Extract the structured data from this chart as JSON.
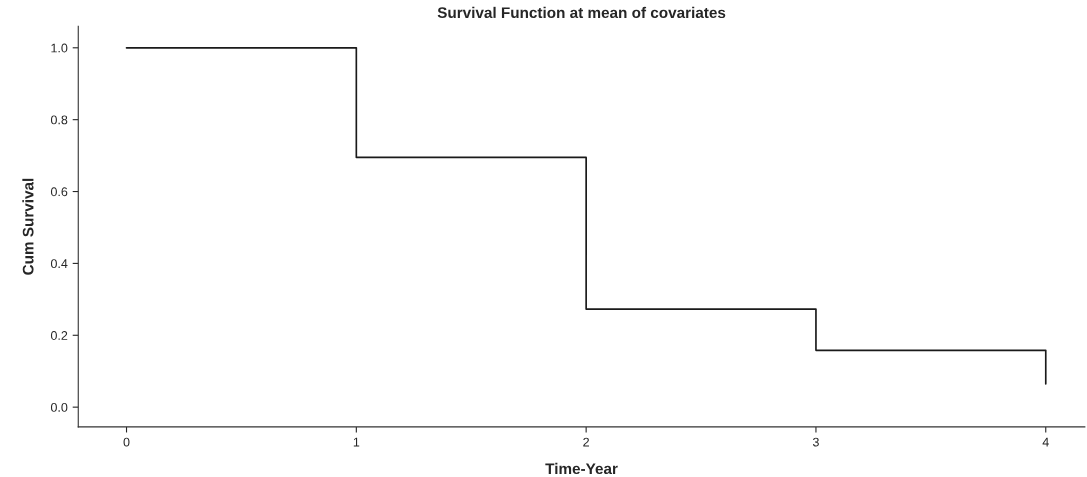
{
  "chart_data": {
    "type": "step",
    "title": "Survival Function at mean of covariates",
    "xlabel": "Time-Year",
    "ylabel": "Cum Survival",
    "x": [
      0,
      1,
      2,
      3,
      4
    ],
    "series": [
      {
        "color": "#1a1a1a",
        "values": [
          1.0,
          0.695,
          0.273,
          0.158,
          0.065
        ]
      }
    ],
    "xlim": [
      -0.21,
      4.17
    ],
    "ylim": [
      -0.055,
      1.06
    ],
    "xticks": [
      0,
      1,
      2,
      3,
      4
    ],
    "yticks": [
      {
        "value": 0,
        "label": "0.0"
      },
      {
        "value": 0.2,
        "label": "0.2"
      },
      {
        "value": 0.4,
        "label": "0.4"
      },
      {
        "value": 0.6,
        "label": "0.6"
      },
      {
        "value": 0.8,
        "label": "0.8"
      },
      {
        "value": 1,
        "label": "1.0"
      }
    ],
    "grid": false
  }
}
